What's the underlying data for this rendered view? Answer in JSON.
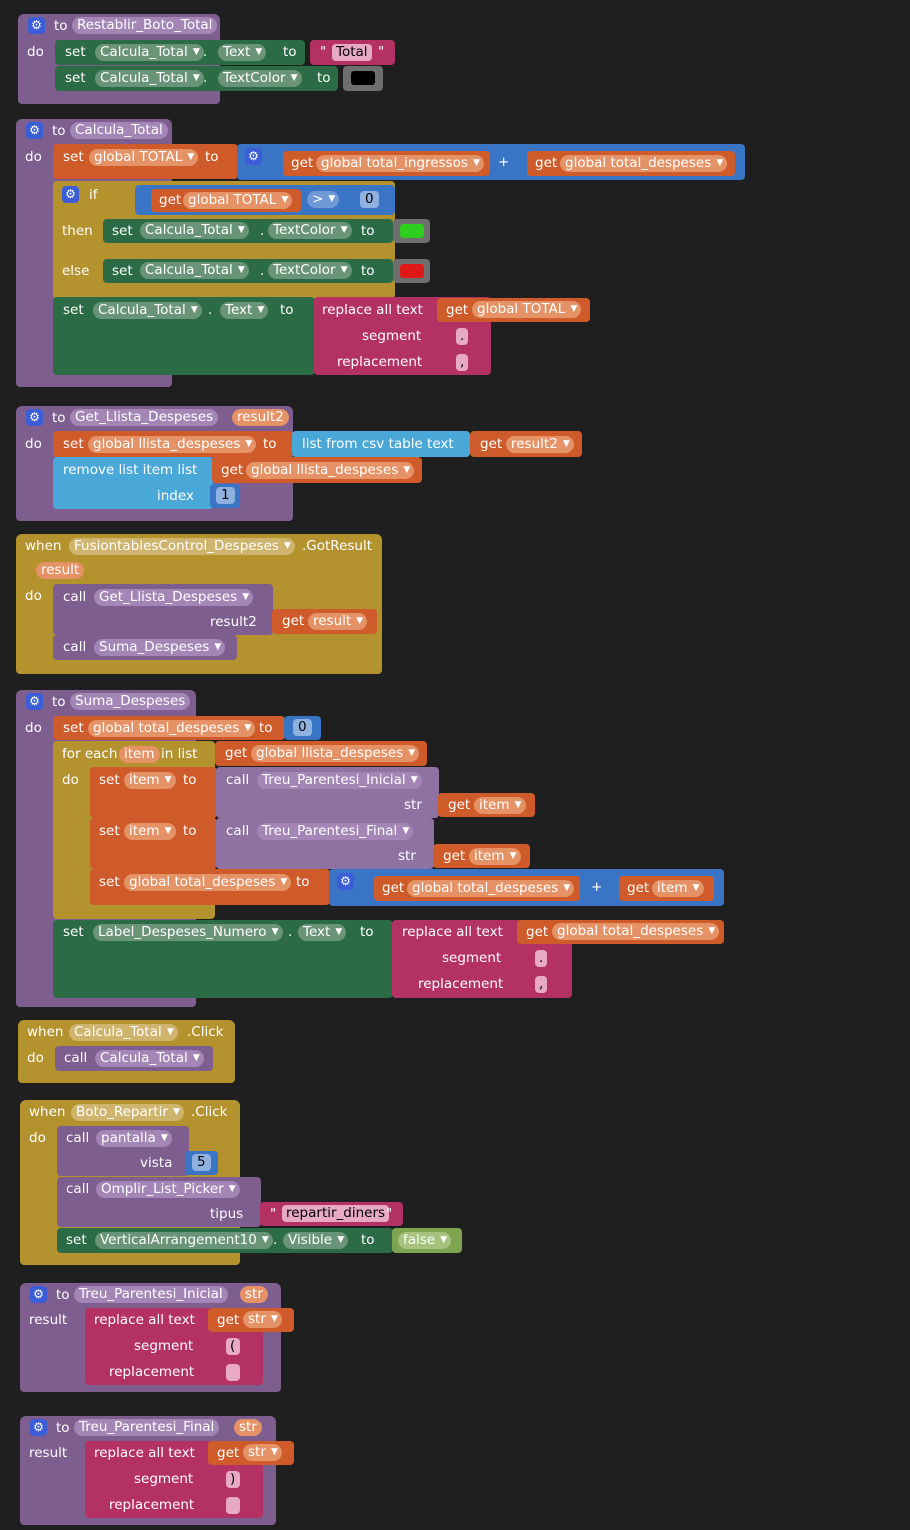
{
  "labels": {
    "to": "to",
    "do": "do",
    "set": "set",
    "get": "get",
    "when": "when",
    "call": "call",
    "if": "if",
    "then": "then",
    "else": "else",
    "result": "result",
    "dot": ".",
    "plus": "+",
    "quote": "\"",
    "replace_all_text": "replace all text",
    "segment": "segment",
    "replacement": "replacement",
    "list_from_csv_table_text": "list from csv table  text",
    "remove_list_item_list": "remove list item  list",
    "index": "index",
    "for_each": "for each",
    "in_list": "in list",
    "str": "str",
    "result2": "result2",
    "vista": "vista",
    "tipus": "tipus"
  },
  "blocks": {
    "restablir": {
      "proc_name": "Restablir_Boto_Total",
      "comp": "Calcula_Total",
      "prop_text": "Text",
      "text_value": "Total",
      "prop_color": "TextColor",
      "color": "#000000"
    },
    "calcula": {
      "proc_name": "Calcula_Total",
      "var_total": "global TOTAL",
      "var_ingressos": "global total_ingressos",
      "var_despeses": "global total_despeses",
      "op_gt": ">",
      "zero": "0",
      "comp": "Calcula_Total",
      "prop_color": "TextColor",
      "prop_text": "Text",
      "then_color": "#2ecc1c",
      "else_color": "#e01818",
      "segment_value": ".",
      "replacement_value": ","
    },
    "get_llista": {
      "proc_name": "Get_Llista_Despeses",
      "param": "result2",
      "var": "global llista_despeses",
      "index_value": "1"
    },
    "fusion": {
      "component": "FusiontablesControl_Despeses",
      "event": ".GotResult",
      "param": "result",
      "call1": "Get_Llista_Despeses",
      "call2": "Suma_Despeses",
      "get_result": "result"
    },
    "suma": {
      "proc_name": "Suma_Despeses",
      "var_total": "global total_despeses",
      "zero": "0",
      "item": "item",
      "var_list": "global llista_despeses",
      "call_inicial": "Treu_Parentesi_Inicial",
      "call_final": "Treu_Parentesi_Final",
      "label_comp": "Label_Despeses_Numero",
      "prop_text": "Text",
      "segment_value": ".",
      "replacement_value": ","
    },
    "calcula_click": {
      "component": "Calcula_Total",
      "event": ".Click",
      "call": "Calcula_Total"
    },
    "repartir": {
      "component": "Boto_Repartir",
      "event": ".Click",
      "call1": "pantalla",
      "vista_value": "5",
      "call2": "Omplir_List_Picker",
      "tipus_value": "repartir_diners",
      "arr": "VerticalArrangement10",
      "prop": "Visible",
      "bool": "false"
    },
    "inicial": {
      "proc_name": "Treu_Parentesi_Inicial",
      "param": "str",
      "segment_value": "(",
      "replacement_value": ""
    },
    "final": {
      "proc_name": "Treu_Parentesi_Final",
      "param": "str",
      "segment_value": ")",
      "replacement_value": ""
    }
  },
  "icons": {
    "gear": "gear-icon",
    "dropdown": "dropdown-arrow-icon"
  },
  "colors": {
    "procedure": "#7e5d8f",
    "variable": "#cf5b2a",
    "setter": "#2b6b45",
    "control": "#b4922e",
    "text": "#b43164",
    "math": "#3a74c4",
    "list": "#4aa8d8",
    "logic": "#7fa44f"
  }
}
